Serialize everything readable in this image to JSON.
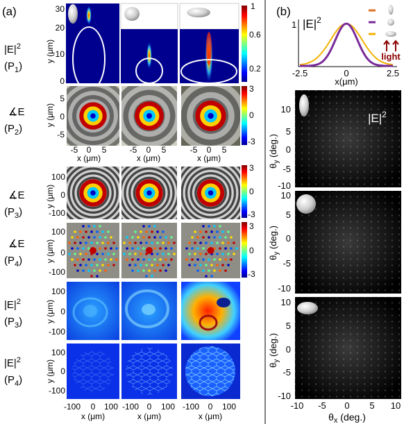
{
  "panel_a": {
    "label": "(a)",
    "row_labels": [
      {
        "top": "|E|",
        "sup": "2",
        "bottom": "(P",
        "sub": "1",
        "close": ")"
      },
      {
        "top": "∡E",
        "sup": "",
        "bottom": "(P",
        "sub": "2",
        "close": ")"
      },
      {
        "top": "∡E",
        "sup": "",
        "bottom": "(P",
        "sub": "3",
        "close": ")"
      },
      {
        "top": "∡E",
        "sup": "",
        "bottom": "(P",
        "sub": "4",
        "close": ")"
      },
      {
        "top": "|E|",
        "sup": "2",
        "bottom": "(P",
        "sub": "3",
        "close": ")"
      },
      {
        "top": "|E|",
        "sup": "2",
        "bottom": "(P",
        "sub": "4",
        "close": ")"
      }
    ],
    "ylabel_p1": "y (μm)",
    "yticks_p1": [
      "30",
      "20",
      "10",
      "0"
    ],
    "cbar_p1_ticks": [
      "1",
      "0.6",
      "0.2"
    ],
    "ylabel_p2": "y (μm)",
    "yticks_p2": [
      "5",
      "0",
      "-5"
    ],
    "xticks_p2": [
      "-5",
      "0",
      "5"
    ],
    "xlabel_p2": "x (μm)",
    "cbar_phase_ticks": [
      "3",
      "0",
      "-3"
    ],
    "ylabel_lower": "y (μm)",
    "yticks_lower": [
      "100",
      "0",
      "-100"
    ],
    "xticks_lower": [
      "-100",
      "0",
      "100"
    ],
    "xlabel_lower": "x (μm)"
  },
  "panel_b": {
    "label": "(b)",
    "profile_ylabel": "|E|",
    "profile_ylabel_sup": "2",
    "profile_xlabel": "x(μm)",
    "profile_xticks": [
      "-2.5",
      "0",
      "2.5"
    ],
    "profile_ytick": "1",
    "legend_light": "light",
    "far_field_title": "|E|",
    "far_field_title_sup": "2",
    "ylabel": "θy (deg.)",
    "ylabel_theta": "θ",
    "ylabel_sub": "y",
    "ylabel_units": " (deg.)",
    "yticks": [
      "10",
      "5",
      "0",
      "-5",
      "-10"
    ],
    "xlabel_theta": "θ",
    "xlabel_sub": "x",
    "xlabel_units": " (deg.)",
    "xticks": [
      "-10",
      "-5",
      "0",
      "5",
      "10"
    ]
  },
  "colors": {
    "jet_low": "#00008f",
    "jet_high": "#800000",
    "line_orange": "#e07020",
    "line_purple": "#7a2a9a",
    "line_yellow": "#f2b000",
    "arrow_dark_red": "#8b0000"
  }
}
